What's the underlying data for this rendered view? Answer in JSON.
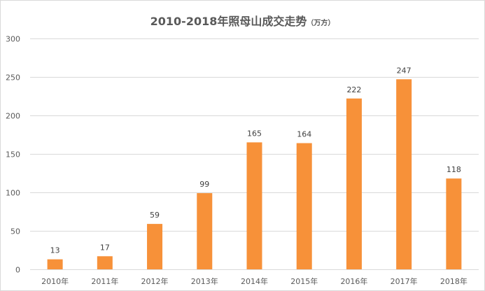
{
  "title": {
    "main": "2010-2018年照母山成交走势",
    "unit": "（万方）"
  },
  "colors": {
    "bar": "#F79139",
    "grid": "#D9D9D9",
    "axis_text": "#595959",
    "title_text": "#595959"
  },
  "chart_data": {
    "type": "bar",
    "title": "2010-2018年照母山成交走势（万方）",
    "categories": [
      "2010年",
      "2011年",
      "2012年",
      "2013年",
      "2014年",
      "2015年",
      "2016年",
      "2017年",
      "2018年"
    ],
    "series": [
      {
        "values": [
          13,
          17,
          59,
          99,
          165,
          164,
          222,
          247,
          118
        ]
      }
    ],
    "ylim": [
      0,
      300
    ],
    "yticks": [
      0,
      50,
      100,
      150,
      200,
      250,
      300
    ],
    "grid": true,
    "data_labels": true,
    "legend": "none"
  }
}
